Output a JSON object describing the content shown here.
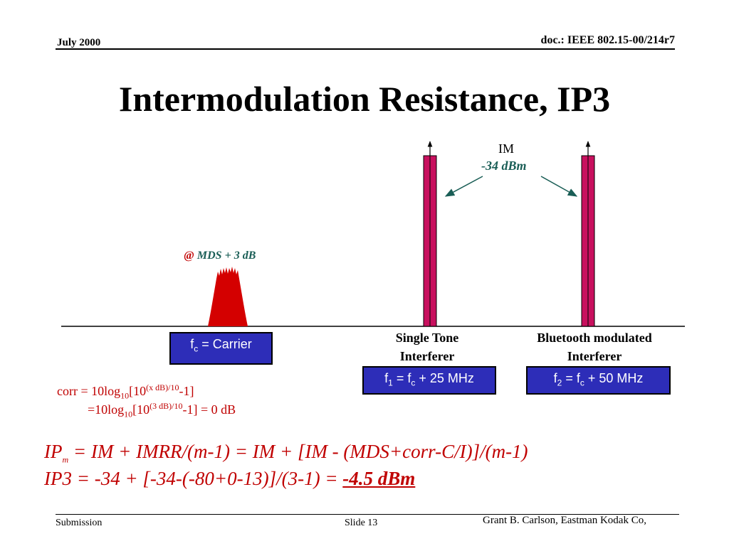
{
  "header": {
    "date": "July 2000",
    "doc": "doc.: IEEE 802.15-00/214r7"
  },
  "title": "Intermodulation Resistance, IP3",
  "diagram": {
    "im_label": "IM",
    "im_value": "-34 dBm",
    "mds_at": "@",
    "mds_text": "MDS + 3 dB",
    "carrier_box": {
      "f": "f",
      "sub": "c",
      "rest": " = Carrier"
    },
    "single_tone": {
      "line1": "Single Tone",
      "line2": "Interferer"
    },
    "bluetooth": {
      "line1": "Bluetooth modulated",
      "line2": "Interferer"
    },
    "f1_box": {
      "f": "f",
      "sub1": "1",
      "mid": " =  f",
      "sub2": "c",
      "rest": " + 25 MHz"
    },
    "f2_box": {
      "f": "f",
      "sub1": "2",
      "mid": " =  f",
      "sub2": "c",
      "rest": " + 50 MHz"
    },
    "colors": {
      "tone": "#c8105e",
      "carrier": "#d40000",
      "arrow": "#1a5e56",
      "box": "#2d2db8"
    }
  },
  "corr": {
    "line1": {
      "a": "corr = 10log",
      "sub": "10",
      "b": "[10",
      "sup": "(x dB)/10",
      "c": "-1]"
    },
    "line2": {
      "a": "=10log",
      "sub": "10",
      "b": "[10",
      "sup": "(3  dB)/10",
      "c": "-1] = 0 dB"
    }
  },
  "equations": {
    "line1": {
      "ip": "IP",
      "sub": "m",
      "rest": " = IM + IMRR/(m-1) = IM + [IM - (MDS+corr-C/I)]/(m-1)"
    },
    "line2": {
      "text": "IP3 = -34 + [-34-(-80+0-13)]/(3-1) = ",
      "result": "-4.5 dBm"
    }
  },
  "footer": {
    "left": "Submission",
    "slide": "Slide 13",
    "author": "Grant B. Carlson, Eastman Kodak Co,"
  }
}
